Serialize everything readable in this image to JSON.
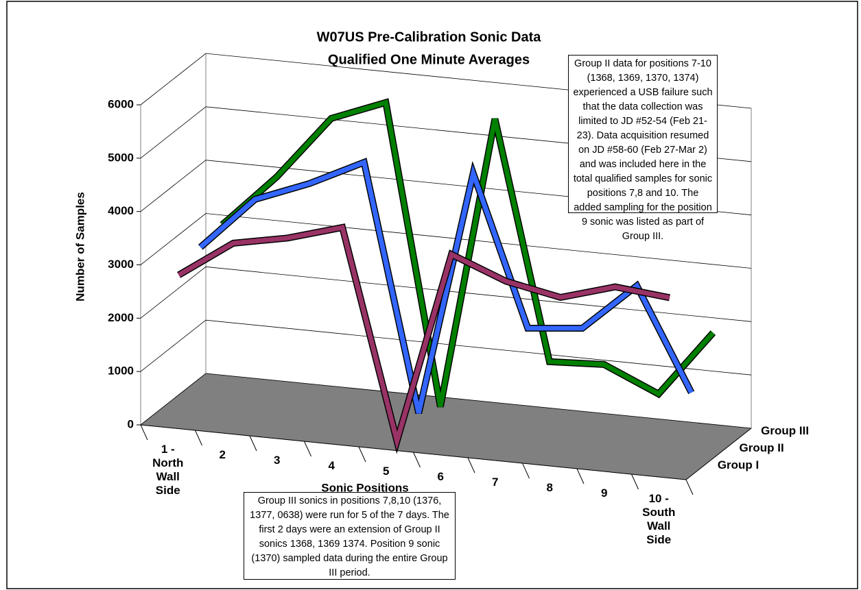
{
  "chart_data": {
    "type": "line3d",
    "title": "W07US Pre-Calibration Sonic Data",
    "subtitle": "Qualified One Minute Averages",
    "x_label": "Sonic Positions",
    "y_label": "Number of Samples",
    "categories": [
      "1 - North Wall Side",
      "2",
      "3",
      "4",
      "5",
      "6",
      "7",
      "8",
      "9",
      "10 - South Wall Side"
    ],
    "series": [
      {
        "name": "Group I",
        "color": "#993366",
        "values": [
          2700,
          3400,
          3600,
          3900,
          0,
          3600,
          3200,
          3000,
          3300,
          3200
        ]
      },
      {
        "name": "Group II",
        "color": "#3366ff",
        "values": [
          2900,
          3900,
          4300,
          4800,
          200,
          4800,
          2000,
          2100,
          3000,
          1100
        ]
      },
      {
        "name": "Group III",
        "color": "#008000",
        "values": [
          3000,
          4000,
          5200,
          5600,
          0,
          5500,
          1050,
          1100,
          650,
          1900
        ]
      }
    ],
    "ylim": [
      0,
      6000
    ],
    "yticks": [
      0,
      1000,
      2000,
      3000,
      4000,
      5000,
      6000
    ],
    "grid": true,
    "annotations": [
      "Group II data for positions 7-10 (1368, 1369, 1370, 1374) experienced a USB failure such that the data collection was limited to JD #52-54 (Feb 21-23).  Data acquisition resumed on JD #58-60 (Feb 27-Mar 2) and was included here in the total qualified samples for sonic positions 7,8 and 10.  The added sampling for the position 9 sonic was listed as part of Group III.",
      "Group III sonics in positions 7,8,10 (1376, 1377, 0638) were run for 5 of the 7 days.  The first 2 days were an extension of Group II sonics 1368, 1369 1374.  Position 9 sonic (1370) sampled data during the entire Group III period."
    ]
  }
}
